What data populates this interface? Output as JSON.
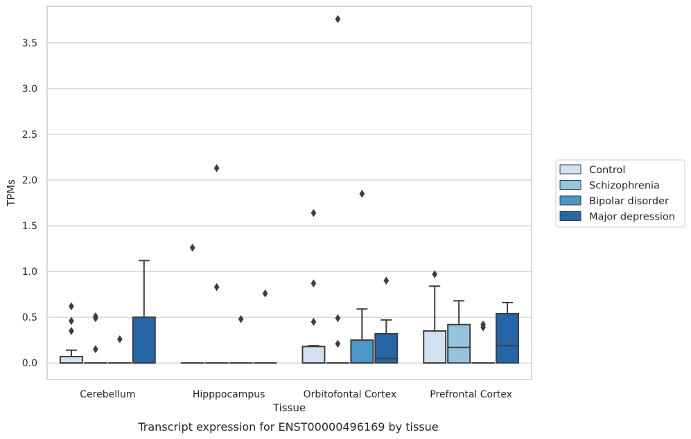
{
  "chart_data": {
    "type": "box",
    "caption": "Transcript expression for ENST00000496169 by tissue",
    "xlabel": "Tissue",
    "ylabel": "TPMs",
    "ylim": [
      -0.18,
      3.9
    ],
    "yticks": [
      0.0,
      0.5,
      1.0,
      1.5,
      2.0,
      2.5,
      3.0,
      3.5
    ],
    "ytick_labels": [
      "0.0",
      "0.5",
      "1.0",
      "1.5",
      "2.0",
      "2.5",
      "3.0",
      "3.5"
    ],
    "grid": "horizontal",
    "legend_placement": "right-outside",
    "categories": [
      "Cerebellum",
      "Hipppocampus",
      "Orbitofontal Cortex",
      "Prefrontal Cortex"
    ],
    "series": [
      {
        "name": "Control",
        "color": "#d0e1f2",
        "boxes": [
          {
            "q1": 0.0,
            "median": 0.0,
            "q3": 0.07,
            "whisker_low": 0.0,
            "whisker_high": 0.14,
            "outliers": [
              0.62,
              0.46,
              0.35
            ]
          },
          {
            "q1": 0.0,
            "median": 0.0,
            "q3": 0.0,
            "whisker_low": 0.0,
            "whisker_high": 0.0,
            "outliers": [
              1.26
            ]
          },
          {
            "q1": 0.0,
            "median": 0.0,
            "q3": 0.18,
            "whisker_low": 0.0,
            "whisker_high": 0.19,
            "outliers": [
              1.64,
              0.87,
              0.45
            ]
          },
          {
            "q1": 0.0,
            "median": 0.0,
            "q3": 0.35,
            "whisker_low": 0.0,
            "whisker_high": 0.84,
            "outliers": [
              0.97
            ]
          }
        ]
      },
      {
        "name": "Schizophrenia",
        "color": "#94c4df",
        "boxes": [
          {
            "q1": 0.0,
            "median": 0.0,
            "q3": 0.0,
            "whisker_low": 0.0,
            "whisker_high": 0.0,
            "outliers": [
              0.51,
              0.49,
              0.15
            ]
          },
          {
            "q1": 0.0,
            "median": 0.0,
            "q3": 0.0,
            "whisker_low": 0.0,
            "whisker_high": 0.0,
            "outliers": [
              2.13,
              0.83
            ]
          },
          {
            "q1": 0.0,
            "median": 0.0,
            "q3": 0.0,
            "whisker_low": 0.0,
            "whisker_high": 0.0,
            "outliers": [
              3.76,
              0.49,
              0.21
            ]
          },
          {
            "q1": 0.0,
            "median": 0.17,
            "q3": 0.42,
            "whisker_low": 0.0,
            "whisker_high": 0.68,
            "outliers": []
          }
        ]
      },
      {
        "name": "Bipolar disorder",
        "color": "#4a98c9",
        "boxes": [
          {
            "q1": 0.0,
            "median": 0.0,
            "q3": 0.0,
            "whisker_low": 0.0,
            "whisker_high": 0.0,
            "outliers": [
              0.26
            ]
          },
          {
            "q1": 0.0,
            "median": 0.0,
            "q3": 0.0,
            "whisker_low": 0.0,
            "whisker_high": 0.0,
            "outliers": [
              0.48
            ]
          },
          {
            "q1": 0.0,
            "median": 0.0,
            "q3": 0.25,
            "whisker_low": 0.0,
            "whisker_high": 0.59,
            "outliers": [
              1.85
            ]
          },
          {
            "q1": 0.0,
            "median": 0.0,
            "q3": 0.0,
            "whisker_low": 0.0,
            "whisker_high": 0.0,
            "outliers": [
              0.42,
              0.39
            ]
          }
        ]
      },
      {
        "name": "Major depression",
        "color": "#2566a8",
        "boxes": [
          {
            "q1": 0.0,
            "median": 0.0,
            "q3": 0.5,
            "whisker_low": 0.0,
            "whisker_high": 1.12,
            "outliers": []
          },
          {
            "q1": 0.0,
            "median": 0.0,
            "q3": 0.0,
            "whisker_low": 0.0,
            "whisker_high": 0.0,
            "outliers": [
              0.76
            ]
          },
          {
            "q1": 0.0,
            "median": 0.05,
            "q3": 0.32,
            "whisker_low": 0.0,
            "whisker_high": 0.47,
            "outliers": [
              0.9
            ]
          },
          {
            "q1": 0.0,
            "median": 0.19,
            "q3": 0.54,
            "whisker_low": 0.0,
            "whisker_high": 0.66,
            "outliers": []
          }
        ]
      }
    ]
  }
}
